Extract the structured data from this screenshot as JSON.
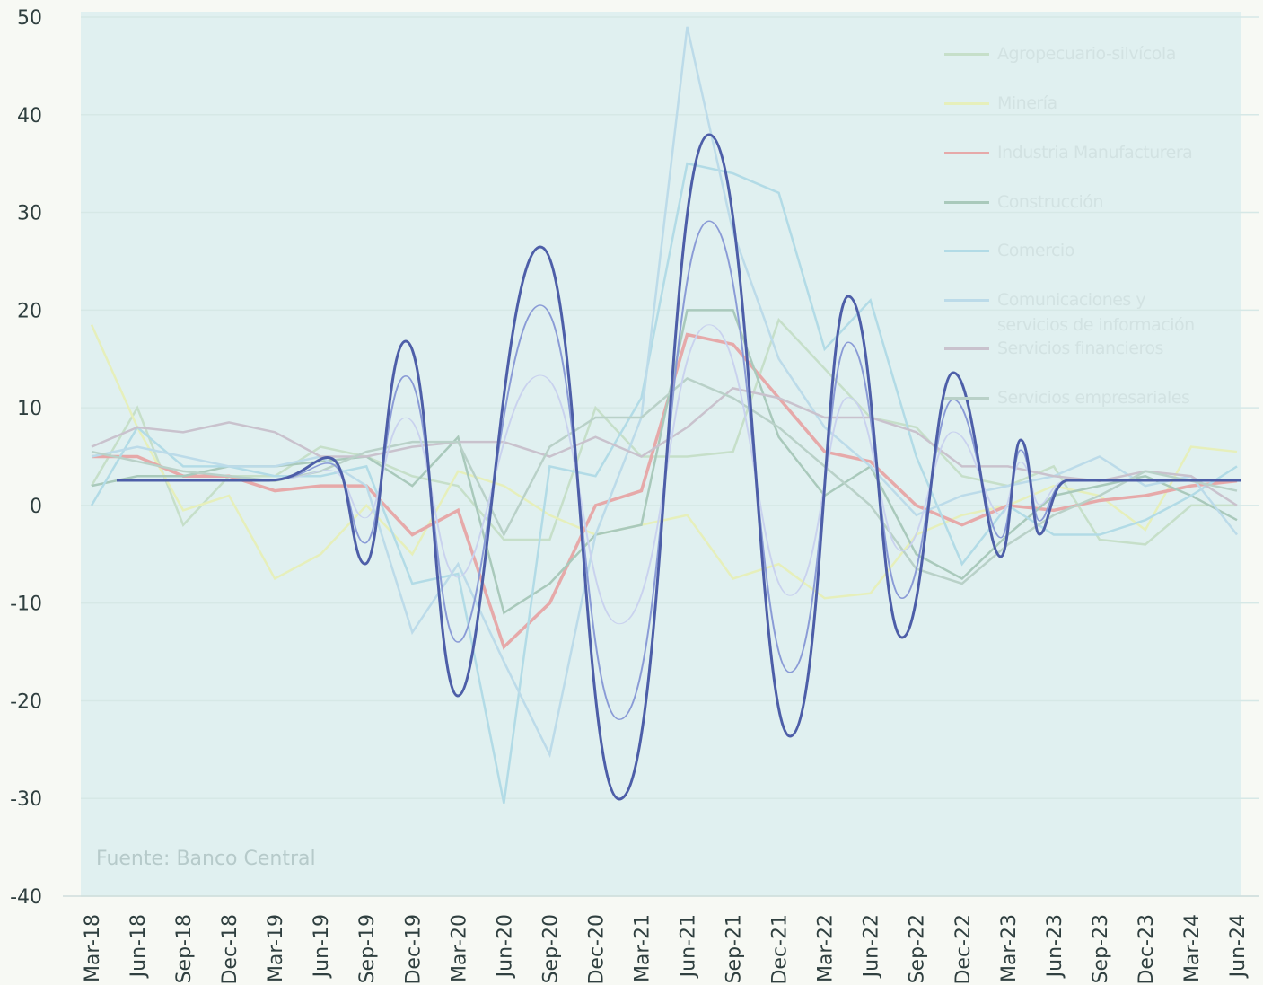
{
  "chart_data": {
    "type": "line",
    "source": "Fuente: Banco Central",
    "categories": [
      "Mar-18",
      "Jun-18",
      "Sep-18",
      "Dec-18",
      "Mar-19",
      "Jun-19",
      "Sep-19",
      "Dec-19",
      "Mar-20",
      "Jun-20",
      "Sep-20",
      "Dec-20",
      "Mar-21",
      "Jun-21",
      "Sep-21",
      "Dec-21",
      "Mar-22",
      "Jun-22",
      "Sep-22",
      "Dec-22",
      "Mar-23",
      "Jun-23",
      "Sep-23",
      "Dec-23",
      "Mar-24",
      "Jun-24"
    ],
    "ylim": [
      -40,
      50
    ],
    "yticks": [
      -40,
      -30,
      -20,
      -10,
      0,
      10,
      20,
      30,
      40,
      50
    ],
    "grid": true,
    "series": [
      {
        "name": "Agropecuario-silvícola",
        "color": "#c6dfc9",
        "values": [
          2,
          10,
          -2,
          3,
          3,
          6,
          5,
          3,
          2,
          -3.5,
          -3.5,
          10,
          5,
          5,
          5.5,
          19,
          14,
          9,
          8,
          3,
          2,
          4,
          -3.5,
          -4,
          0,
          0
        ]
      },
      {
        "name": "Minería",
        "color": "#e6efbb",
        "values": [
          18.5,
          8,
          -0.5,
          1,
          -7.5,
          -5,
          0,
          -5,
          3.5,
          2,
          -1,
          -3,
          -2,
          -1,
          -7.5,
          -6,
          -9.5,
          -9,
          -3,
          -1,
          0,
          2,
          1,
          -2.5,
          6,
          5.5
        ]
      },
      {
        "name": "Industria Manufacturera",
        "color": "#e6a9a9",
        "values": [
          5,
          5,
          3,
          3,
          1.5,
          2,
          2,
          -3,
          -0.5,
          -14.5,
          -10,
          0,
          1.5,
          17.5,
          16.5,
          11,
          5.5,
          4.5,
          0,
          -2,
          0,
          -0.5,
          0.5,
          1,
          2,
          2.5
        ]
      },
      {
        "name": "Construcción",
        "color": "#a9c9bb",
        "values": [
          2,
          3,
          3,
          4,
          4,
          4.5,
          5,
          2,
          7,
          -11,
          -8,
          -3,
          -2,
          20,
          20,
          7,
          1,
          4,
          -5,
          -7.5,
          -3,
          1,
          2,
          3,
          1,
          -1.5
        ]
      },
      {
        "name": "Comercio",
        "color": "#b2dbe6",
        "values": [
          0,
          8,
          4,
          4,
          3,
          3,
          4,
          -8,
          -7,
          -30.5,
          4,
          3,
          11,
          35,
          34,
          32,
          16,
          21,
          5,
          -6,
          0,
          -3,
          -3,
          -1.5,
          1,
          4
        ]
      },
      {
        "name": "Comunicaciones y servicios de información",
        "color": "#bcdbe9",
        "values": [
          5,
          6,
          5,
          4,
          4,
          5,
          2,
          -13,
          -6,
          -16,
          -25.5,
          -3,
          9,
          49,
          28,
          15,
          8,
          4,
          -1,
          1,
          2,
          3,
          5,
          2,
          3,
          -3
        ]
      },
      {
        "name": "Servicios financieros",
        "color": "#c9c2cd",
        "values": [
          6,
          8,
          7.5,
          8.5,
          7.5,
          5,
          5,
          6,
          6.5,
          6.5,
          5,
          7,
          5,
          8,
          12,
          11,
          9,
          9,
          7.5,
          4,
          4,
          3,
          2.5,
          3.5,
          3,
          0
        ]
      },
      {
        "name": "Servicios empresariales",
        "color": "#b9d1c8",
        "values": [
          5.5,
          4.5,
          3.5,
          3,
          2.5,
          3.5,
          5.5,
          6.5,
          6.5,
          -3,
          6,
          9,
          9,
          13,
          11,
          8,
          4,
          0,
          -6.5,
          -8,
          -4,
          -1,
          1,
          3.5,
          2.5,
          1.5
        ]
      }
    ]
  }
}
